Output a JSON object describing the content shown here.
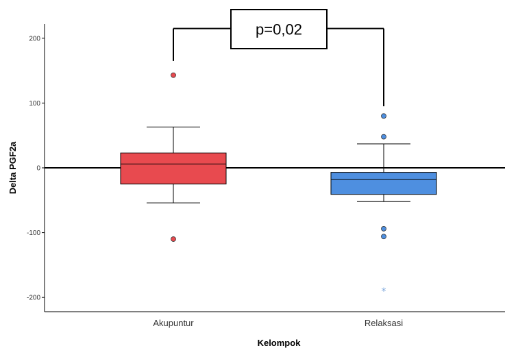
{
  "chart_data": {
    "type": "box",
    "xlabel": "Kelompok",
    "ylabel": "Delta PGF2a",
    "ylim": [
      -222,
      222
    ],
    "yticks": [
      200,
      100,
      0,
      -100,
      -200
    ],
    "reference_line_y": 0,
    "grid": false,
    "categories": [
      "Akupuntur",
      "Relaksasi"
    ],
    "boxes": [
      {
        "category": "Akupuntur",
        "color": "#E84A4F",
        "whisker_low": -54,
        "q1": -25,
        "median": 6,
        "q3": 23,
        "whisker_high": 63,
        "outliers": [
          143,
          -110
        ],
        "extremes": []
      },
      {
        "category": "Relaksasi",
        "color": "#4E8FE0",
        "whisker_low": -52,
        "q1": -41,
        "median": -18,
        "q3": -7,
        "whisker_high": 37,
        "outliers": [
          80,
          48,
          -94,
          -106
        ],
        "extremes": [
          -188
        ]
      }
    ],
    "annotation": {
      "text": "p=0,02",
      "bracket_y": 215,
      "left_drop_to": 165,
      "right_drop_to": 95
    }
  }
}
